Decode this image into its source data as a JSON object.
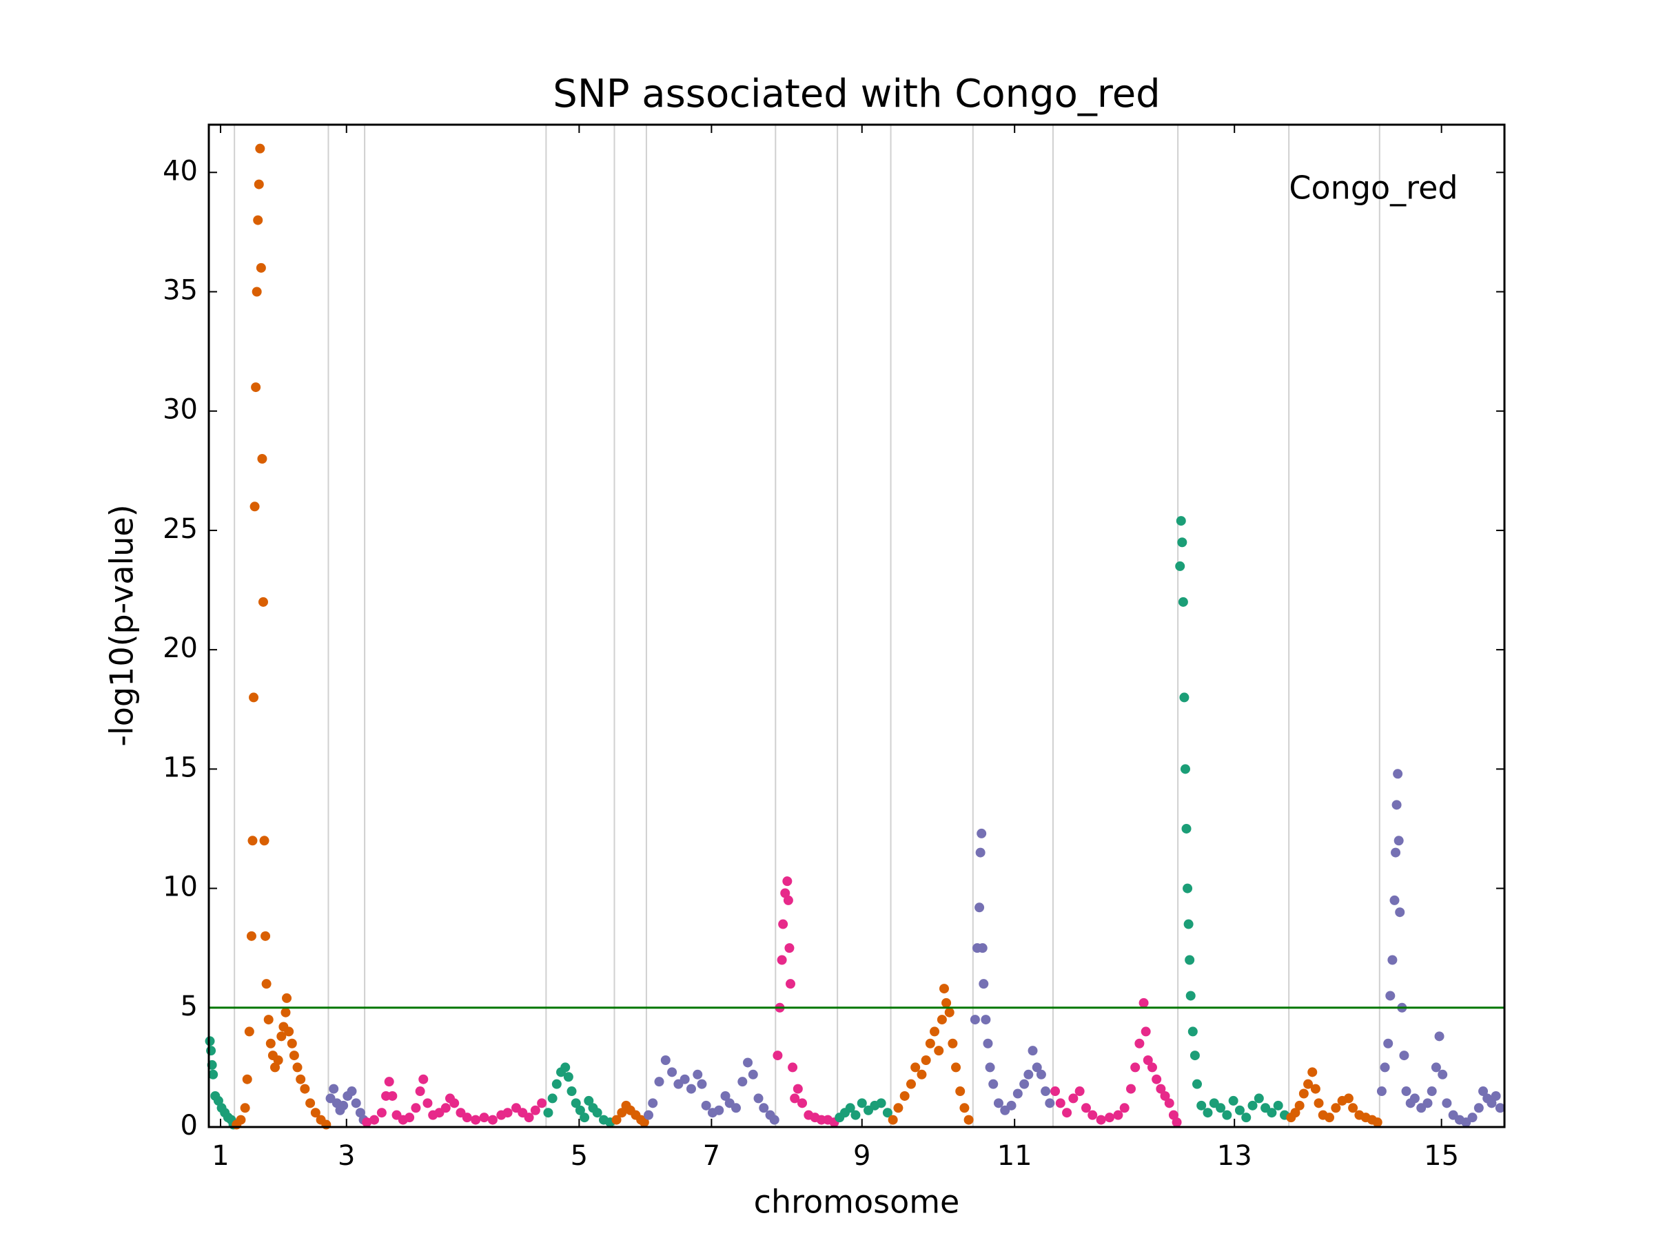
{
  "chart_data": {
    "type": "scatter",
    "title": "SNP associated with Congo_red",
    "x_label": "chromosome",
    "y_label": "-log10(p-value)",
    "legend": "upper right",
    "xlim": [
      0,
      12.14
    ],
    "ylim": [
      0,
      42
    ],
    "xticks": [
      {
        "value": 0.11,
        "label": "1"
      },
      {
        "value": 1.29,
        "label": "3"
      },
      {
        "value": 3.47,
        "label": "5"
      },
      {
        "value": 4.71,
        "label": "7"
      },
      {
        "value": 6.12,
        "label": "9"
      },
      {
        "value": 7.55,
        "label": "11"
      },
      {
        "value": 9.61,
        "label": "13"
      },
      {
        "value": 11.55,
        "label": "15"
      }
    ],
    "yticks": [
      0,
      5,
      10,
      15,
      20,
      25,
      30,
      35,
      40
    ],
    "grid": "x",
    "chromosome_bounds": [
      0.24,
      1.12,
      1.46,
      3.16,
      3.8,
      4.1,
      5.31,
      5.89,
      6.39,
      7.16,
      7.91,
      9.08,
      10.12,
      10.97
    ],
    "colors": [
      "#1b9e77",
      "#d95f02",
      "#7570b3",
      "#e7298a"
    ],
    "threshold": 5,
    "threshold_color": "#007700",
    "series": [
      {
        "name": "Congo_red",
        "x": [
          0.01,
          0.02,
          0.03,
          0.04,
          0.06,
          0.09,
          0.12,
          0.15,
          0.18,
          0.21,
          0.23,
          0.26,
          0.3,
          0.34,
          0.36,
          0.38,
          0.4,
          0.41,
          0.42,
          0.43,
          0.44,
          0.45,
          0.46,
          0.47,
          0.48,
          0.49,
          0.5,
          0.51,
          0.52,
          0.53,
          0.54,
          0.56,
          0.58,
          0.6,
          0.62,
          0.65,
          0.68,
          0.7,
          0.72,
          0.73,
          0.75,
          0.78,
          0.8,
          0.83,
          0.86,
          0.9,
          0.95,
          1.0,
          1.05,
          1.1,
          1.14,
          1.17,
          1.2,
          1.23,
          1.26,
          1.3,
          1.34,
          1.38,
          1.42,
          1.45,
          1.48,
          1.55,
          1.62,
          1.66,
          1.69,
          1.72,
          1.76,
          1.82,
          1.88,
          1.94,
          1.98,
          2.01,
          2.05,
          2.1,
          2.16,
          2.22,
          2.26,
          2.3,
          2.36,
          2.42,
          2.5,
          2.58,
          2.66,
          2.74,
          2.8,
          2.88,
          2.94,
          3.0,
          3.06,
          3.12,
          3.18,
          3.22,
          3.26,
          3.3,
          3.34,
          3.37,
          3.4,
          3.44,
          3.48,
          3.52,
          3.56,
          3.6,
          3.64,
          3.7,
          3.76,
          3.82,
          3.87,
          3.91,
          3.95,
          4.0,
          4.05,
          4.08,
          4.12,
          4.16,
          4.22,
          4.28,
          4.34,
          4.4,
          4.46,
          4.52,
          4.58,
          4.62,
          4.66,
          4.72,
          4.78,
          4.84,
          4.88,
          4.94,
          5.0,
          5.05,
          5.1,
          5.15,
          5.2,
          5.26,
          5.3,
          5.33,
          5.35,
          5.37,
          5.38,
          5.4,
          5.42,
          5.43,
          5.44,
          5.45,
          5.47,
          5.49,
          5.52,
          5.56,
          5.62,
          5.68,
          5.74,
          5.8,
          5.86,
          5.91,
          5.96,
          6.01,
          6.06,
          6.12,
          6.18,
          6.24,
          6.3,
          6.36,
          6.41,
          6.46,
          6.52,
          6.58,
          6.62,
          6.68,
          6.72,
          6.76,
          6.8,
          6.84,
          6.87,
          6.89,
          6.91,
          6.94,
          6.97,
          7.0,
          7.04,
          7.08,
          7.12,
          7.18,
          7.2,
          7.22,
          7.23,
          7.24,
          7.25,
          7.26,
          7.28,
          7.3,
          7.32,
          7.35,
          7.4,
          7.46,
          7.52,
          7.58,
          7.64,
          7.68,
          7.72,
          7.76,
          7.8,
          7.84,
          7.88,
          7.93,
          7.98,
          8.04,
          8.1,
          8.16,
          8.22,
          8.28,
          8.36,
          8.44,
          8.52,
          8.58,
          8.64,
          8.68,
          8.72,
          8.76,
          8.78,
          8.8,
          8.84,
          8.88,
          8.92,
          8.96,
          9.0,
          9.04,
          9.07,
          9.1,
          9.11,
          9.12,
          9.13,
          9.14,
          9.15,
          9.16,
          9.17,
          9.18,
          9.19,
          9.2,
          9.22,
          9.24,
          9.26,
          9.3,
          9.36,
          9.42,
          9.48,
          9.54,
          9.6,
          9.66,
          9.72,
          9.78,
          9.84,
          9.9,
          9.96,
          10.02,
          10.08,
          10.14,
          10.18,
          10.22,
          10.26,
          10.3,
          10.34,
          10.37,
          10.4,
          10.44,
          10.5,
          10.56,
          10.62,
          10.68,
          10.72,
          10.78,
          10.84,
          10.9,
          10.95,
          10.99,
          11.02,
          11.05,
          11.07,
          11.09,
          11.11,
          11.12,
          11.13,
          11.14,
          11.15,
          11.16,
          11.18,
          11.2,
          11.22,
          11.26,
          11.3,
          11.36,
          11.42,
          11.46,
          11.5,
          11.53,
          11.56,
          11.6,
          11.66,
          11.72,
          11.78,
          11.84,
          11.9,
          11.94,
          11.98,
          12.02,
          12.06,
          12.1
        ],
        "values": [
          3.6,
          3.2,
          2.6,
          2.2,
          1.3,
          1.1,
          0.8,
          0.6,
          0.4,
          0.3,
          0.1,
          0.1,
          0.3,
          0.8,
          2,
          4,
          8,
          12,
          18,
          26,
          31,
          35,
          38,
          39.5,
          41,
          36,
          28,
          22,
          12,
          8,
          6,
          4.5,
          3.5,
          3,
          2.5,
          2.8,
          3.8,
          4.2,
          4.8,
          5.4,
          4,
          3.5,
          3,
          2.5,
          2,
          1.6,
          1,
          0.6,
          0.3,
          0.1,
          1.2,
          1.6,
          1.0,
          0.7,
          0.9,
          1.3,
          1.5,
          1.0,
          0.6,
          0.3,
          0.2,
          0.3,
          0.6,
          1.3,
          1.9,
          1.3,
          0.5,
          0.3,
          0.4,
          0.8,
          1.5,
          2.0,
          1.0,
          0.5,
          0.6,
          0.8,
          1.2,
          1.0,
          0.6,
          0.4,
          0.3,
          0.4,
          0.3,
          0.5,
          0.6,
          0.8,
          0.6,
          0.4,
          0.7,
          1.0,
          0.6,
          1.2,
          1.8,
          2.3,
          2.5,
          2.1,
          1.5,
          1.0,
          0.7,
          0.4,
          1.1,
          0.8,
          0.6,
          0.3,
          0.2,
          0.3,
          0.6,
          0.9,
          0.7,
          0.5,
          0.3,
          0.2,
          0.5,
          1.0,
          1.9,
          2.8,
          2.3,
          1.8,
          2.0,
          1.6,
          2.2,
          1.8,
          0.9,
          0.6,
          0.7,
          1.3,
          1.0,
          0.8,
          1.9,
          2.7,
          2.2,
          1.2,
          0.8,
          0.5,
          0.3,
          3,
          5,
          7,
          8.5,
          9.8,
          10.3,
          9.5,
          7.5,
          6,
          2.5,
          1.2,
          1.6,
          1.0,
          0.5,
          0.4,
          0.3,
          0.3,
          0.2,
          0.4,
          0.6,
          0.8,
          0.5,
          1.0,
          0.7,
          0.9,
          1.0,
          0.6,
          0.3,
          0.8,
          1.3,
          1.8,
          2.5,
          2.2,
          2.8,
          3.5,
          4.0,
          3.2,
          4.5,
          5.8,
          5.2,
          4.8,
          3.5,
          2.5,
          1.5,
          0.8,
          0.3,
          4.5,
          7.5,
          9.2,
          11.5,
          12.3,
          7.5,
          6,
          4.5,
          3.5,
          2.5,
          1.8,
          1.0,
          0.7,
          0.9,
          1.4,
          1.8,
          2.2,
          3.2,
          2.5,
          2.2,
          1.5,
          1.0,
          1.5,
          1.0,
          0.6,
          1.2,
          1.5,
          0.8,
          0.5,
          0.3,
          0.4,
          0.5,
          0.8,
          1.6,
          2.5,
          3.5,
          5.2,
          4.0,
          2.8,
          2.5,
          2.0,
          1.6,
          1.3,
          1.0,
          0.5,
          0.2,
          23.5,
          25.4,
          24.5,
          22,
          18,
          15,
          12.5,
          10,
          8.5,
          7,
          5.5,
          4,
          3,
          1.8,
          0.9,
          0.6,
          1.0,
          0.8,
          0.5,
          1.1,
          0.7,
          0.4,
          0.9,
          1.2,
          0.8,
          0.6,
          0.9,
          0.5,
          0.4,
          0.6,
          0.9,
          1.4,
          1.8,
          2.3,
          1.6,
          1.0,
          0.5,
          0.4,
          0.8,
          1.1,
          1.2,
          0.8,
          0.5,
          0.4,
          0.3,
          0.2,
          1.5,
          2.5,
          3.5,
          5.5,
          7,
          9.5,
          11.5,
          13.5,
          14.8,
          12,
          9,
          5,
          3,
          1.5,
          1.0,
          1.2,
          0.8,
          1.0,
          1.5,
          2.5,
          3.8,
          2.2,
          1.0,
          0.5,
          0.3,
          0.2,
          0.4,
          0.8,
          1.5,
          1.2,
          1.0,
          1.3,
          0.8
        ]
      }
    ]
  }
}
